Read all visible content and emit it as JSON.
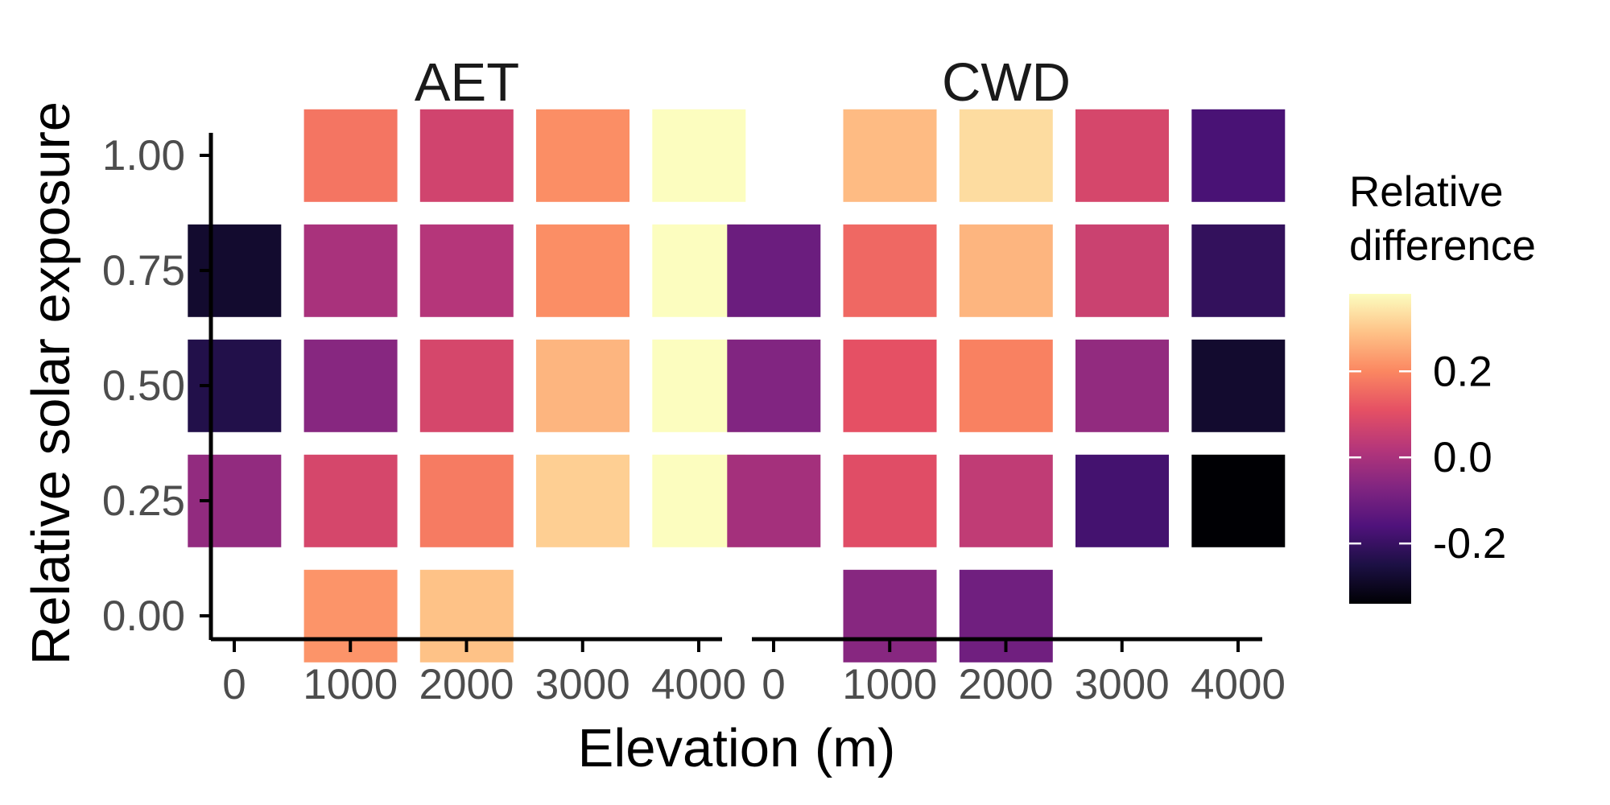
{
  "chart_data": {
    "type": "heatmap",
    "xlabel": "Elevation (m)",
    "ylabel": "Relative solar exposure",
    "x_ticks": [
      "0",
      "1000",
      "2000",
      "3000",
      "4000"
    ],
    "y_ticks": [
      "0.00",
      "0.25",
      "0.50",
      "0.75",
      "1.00"
    ],
    "xlim": [
      0,
      4000
    ],
    "ylim": [
      0,
      1
    ],
    "x_centers": [
      0,
      1000,
      2000,
      3000,
      4000
    ],
    "y_centers": [
      0.0,
      0.25,
      0.5,
      0.75,
      1.0
    ],
    "legend": {
      "title_line1": "Relative",
      "title_line2": "difference",
      "ticks": [
        "0.2",
        "0.0",
        "-0.2"
      ],
      "tick_values": [
        0.2,
        0.0,
        -0.2
      ],
      "min": -0.34,
      "max": 0.38,
      "placement": "right",
      "palette": [
        "#000004",
        "#1c1044",
        "#4f127b",
        "#812581",
        "#b5367a",
        "#e55064",
        "#fb8761",
        "#fec287",
        "#fcfdbf"
      ]
    },
    "panels": [
      {
        "title": "AET",
        "cells": [
          {
            "x": 1000,
            "y": 1.0,
            "value": 0.17
          },
          {
            "x": 2000,
            "y": 1.0,
            "value": 0.07
          },
          {
            "x": 3000,
            "y": 1.0,
            "value": 0.21
          },
          {
            "x": 4000,
            "y": 1.0,
            "value": 0.38
          },
          {
            "x": 0,
            "y": 0.75,
            "value": -0.28
          },
          {
            "x": 1000,
            "y": 0.75,
            "value": 0.0
          },
          {
            "x": 2000,
            "y": 0.75,
            "value": 0.02
          },
          {
            "x": 3000,
            "y": 0.75,
            "value": 0.21
          },
          {
            "x": 4000,
            "y": 0.75,
            "value": 0.38
          },
          {
            "x": 0,
            "y": 0.5,
            "value": -0.24
          },
          {
            "x": 1000,
            "y": 0.5,
            "value": -0.06
          },
          {
            "x": 2000,
            "y": 0.5,
            "value": 0.08
          },
          {
            "x": 3000,
            "y": 0.5,
            "value": 0.27
          },
          {
            "x": 4000,
            "y": 0.5,
            "value": 0.38
          },
          {
            "x": 0,
            "y": 0.25,
            "value": -0.04
          },
          {
            "x": 1000,
            "y": 0.25,
            "value": 0.08
          },
          {
            "x": 2000,
            "y": 0.25,
            "value": 0.18
          },
          {
            "x": 3000,
            "y": 0.25,
            "value": 0.31
          },
          {
            "x": 4000,
            "y": 0.25,
            "value": 0.38
          },
          {
            "x": 1000,
            "y": 0.0,
            "value": 0.22
          },
          {
            "x": 2000,
            "y": 0.0,
            "value": 0.29
          }
        ]
      },
      {
        "title": "CWD",
        "cells": [
          {
            "x": 1000,
            "y": 1.0,
            "value": 0.28
          },
          {
            "x": 2000,
            "y": 1.0,
            "value": 0.33
          },
          {
            "x": 3000,
            "y": 1.0,
            "value": 0.08
          },
          {
            "x": 4000,
            "y": 1.0,
            "value": -0.17
          },
          {
            "x": 0,
            "y": 0.75,
            "value": -0.11
          },
          {
            "x": 1000,
            "y": 0.75,
            "value": 0.15
          },
          {
            "x": 2000,
            "y": 0.75,
            "value": 0.27
          },
          {
            "x": 3000,
            "y": 0.75,
            "value": 0.06
          },
          {
            "x": 4000,
            "y": 0.75,
            "value": -0.21
          },
          {
            "x": 0,
            "y": 0.5,
            "value": -0.07
          },
          {
            "x": 1000,
            "y": 0.5,
            "value": 0.11
          },
          {
            "x": 2000,
            "y": 0.5,
            "value": 0.19
          },
          {
            "x": 3000,
            "y": 0.5,
            "value": -0.04
          },
          {
            "x": 4000,
            "y": 0.5,
            "value": -0.28
          },
          {
            "x": 0,
            "y": 0.25,
            "value": -0.01
          },
          {
            "x": 1000,
            "y": 0.25,
            "value": 0.1
          },
          {
            "x": 2000,
            "y": 0.25,
            "value": 0.04
          },
          {
            "x": 3000,
            "y": 0.25,
            "value": -0.18
          },
          {
            "x": 4000,
            "y": 0.25,
            "value": -0.34
          },
          {
            "x": 1000,
            "y": 0.0,
            "value": -0.06
          },
          {
            "x": 2000,
            "y": 0.0,
            "value": -0.1
          }
        ]
      }
    ]
  }
}
